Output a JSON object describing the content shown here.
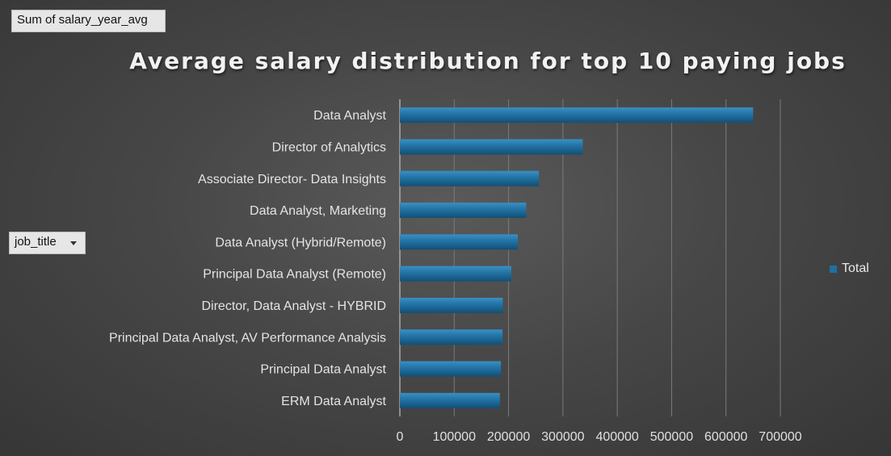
{
  "pivot": {
    "value_field_label": "Sum of salary_year_avg",
    "row_field_label": "job_title"
  },
  "chart_data": {
    "type": "bar",
    "orientation": "horizontal",
    "title": "Average salary distribution for top 10 paying jobs",
    "categories": [
      "Data Analyst",
      "Director of Analytics",
      "Associate Director- Data Insights",
      "Data Analyst, Marketing",
      "Data Analyst (Hybrid/Remote)",
      "Principal Data Analyst (Remote)",
      "Director, Data Analyst - HYBRID",
      "Principal Data Analyst, AV Performance Analysis",
      "Principal Data Analyst",
      "ERM Data Analyst"
    ],
    "series": [
      {
        "name": "Total",
        "values": [
          650000,
          336500,
          255830,
          232423,
          217000,
          205000,
          189309,
          189000,
          186000,
          184000
        ],
        "color": "#1f6fa0"
      }
    ],
    "xlim": [
      0,
      700000
    ],
    "xticks": [
      "0",
      "100000",
      "200000",
      "300000",
      "400000",
      "500000",
      "600000",
      "700000"
    ],
    "grid": true,
    "legend_position": "right"
  }
}
